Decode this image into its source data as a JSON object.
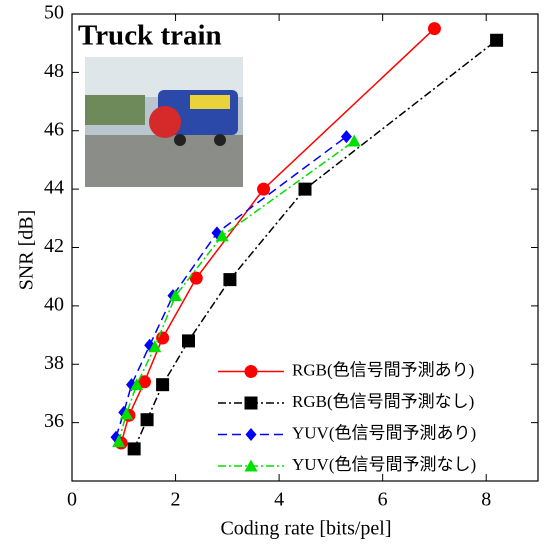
{
  "chart_data": {
    "type": "line",
    "title": "Truck train",
    "x_label": "Coding rate [bits/pel]",
    "y_label": "SNR [dB]",
    "xlim": [
      0,
      9
    ],
    "ylim": [
      34,
      50
    ],
    "xticks": [
      0,
      2,
      4,
      6,
      8
    ],
    "yticks": [
      36,
      38,
      40,
      42,
      44,
      46,
      48,
      50
    ],
    "legend": "lower right",
    "series": [
      {
        "name": "RGB(色信号間予測あり)",
        "color": "#ff0000",
        "marker": "circle",
        "dash": "solid",
        "x": [
          0.95,
          1.1,
          1.4,
          1.75,
          2.4,
          3.7,
          7.0
        ],
        "values": [
          35.3,
          36.25,
          37.4,
          38.9,
          40.95,
          44.0,
          49.5
        ]
      },
      {
        "name": "RGB(色信号間予測なし)",
        "color": "#000000",
        "marker": "square",
        "dash": "dashdot",
        "x": [
          1.2,
          1.45,
          1.75,
          2.25,
          3.05,
          4.5,
          8.2
        ],
        "values": [
          35.1,
          36.1,
          37.3,
          38.8,
          40.9,
          44.0,
          49.1
        ]
      },
      {
        "name": "YUV(色信号間予測あり)",
        "color": "#0000ff",
        "marker": "diamond",
        "dash": "dashed",
        "x": [
          0.85,
          1.0,
          1.15,
          1.5,
          1.95,
          2.8,
          5.3
        ],
        "values": [
          35.5,
          36.35,
          37.3,
          38.65,
          40.35,
          42.5,
          45.8
        ]
      },
      {
        "name": "YUV(色信号間予測なし)",
        "color": "#00e000",
        "marker": "triangle",
        "dash": "dashdot",
        "x": [
          0.9,
          1.05,
          1.25,
          1.6,
          2.0,
          2.9,
          5.45
        ],
        "values": [
          35.35,
          36.3,
          37.3,
          38.6,
          40.35,
          42.4,
          45.65
        ]
      }
    ]
  }
}
